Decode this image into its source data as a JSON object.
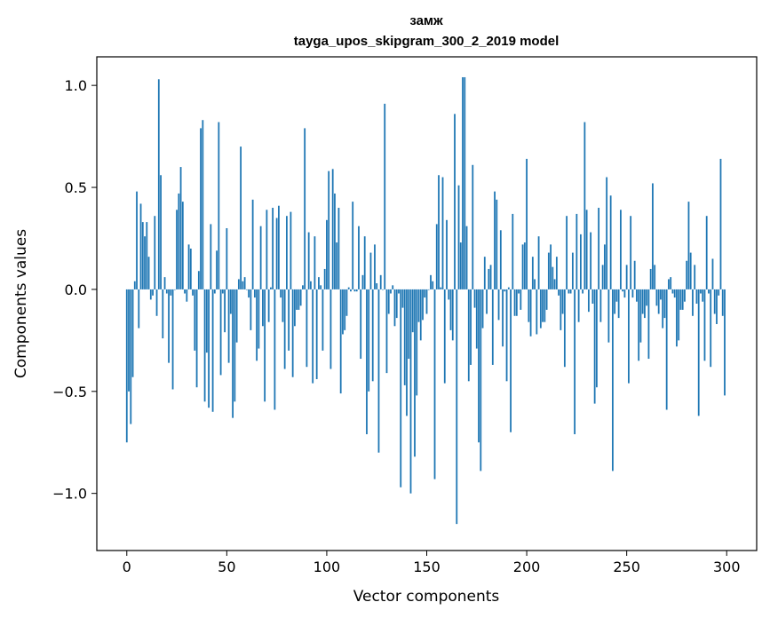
{
  "chart_data": {
    "type": "bar",
    "title": "замж",
    "subtitle": "tayga_upos_skipgram_300_2_2019 model",
    "xlabel": "Vector components",
    "ylabel": "Components values",
    "xlim": [
      -15,
      315
    ],
    "ylim": [
      -1.28,
      1.14
    ],
    "xticks": [
      0,
      50,
      100,
      150,
      200,
      250,
      300
    ],
    "yticks": [
      -1.0,
      -0.5,
      0.0,
      0.5,
      1.0
    ],
    "ytick_labels": [
      "−1.0",
      "−0.5",
      "0.0",
      "0.5",
      "1.0"
    ],
    "bar_color": "#1f77b4",
    "values": [
      -0.75,
      -0.5,
      -0.66,
      -0.43,
      0.04,
      0.48,
      -0.19,
      0.42,
      0.33,
      0.26,
      0.33,
      0.16,
      -0.05,
      -0.03,
      0.36,
      -0.13,
      1.03,
      0.56,
      -0.24,
      0.06,
      -0.02,
      -0.36,
      -0.03,
      -0.49,
      0.0,
      0.39,
      0.47,
      0.6,
      0.43,
      -0.02,
      -0.06,
      0.22,
      0.2,
      -0.03,
      -0.3,
      -0.48,
      0.09,
      0.79,
      0.83,
      -0.55,
      -0.31,
      -0.58,
      0.32,
      -0.6,
      -0.02,
      0.19,
      0.82,
      -0.42,
      -0.02,
      -0.21,
      0.3,
      -0.36,
      -0.12,
      -0.63,
      -0.55,
      -0.26,
      0.05,
      0.7,
      0.04,
      0.06,
      0.0,
      -0.04,
      -0.2,
      0.44,
      -0.04,
      -0.35,
      -0.29,
      0.31,
      -0.18,
      -0.55,
      0.39,
      -0.16,
      0.01,
      0.4,
      -0.59,
      0.35,
      0.41,
      -0.04,
      -0.16,
      -0.39,
      0.36,
      -0.3,
      0.38,
      -0.43,
      -0.18,
      -0.1,
      -0.1,
      -0.08,
      0.02,
      0.79,
      -0.38,
      0.28,
      0.04,
      -0.46,
      0.26,
      -0.44,
      0.06,
      0.02,
      -0.3,
      0.1,
      0.34,
      0.58,
      -0.39,
      0.59,
      0.47,
      0.23,
      0.4,
      -0.51,
      -0.22,
      -0.2,
      -0.13,
      0.01,
      -0.01,
      0.43,
      -0.01,
      -0.01,
      0.31,
      -0.34,
      0.07,
      0.26,
      -0.71,
      -0.5,
      0.18,
      -0.45,
      0.22,
      0.03,
      -0.8,
      0.07,
      0.0,
      0.91,
      -0.41,
      -0.12,
      -0.02,
      0.02,
      -0.18,
      -0.14,
      -0.02,
      -0.97,
      -0.09,
      -0.47,
      -0.62,
      -0.34,
      -1.0,
      -0.21,
      -0.82,
      -0.52,
      -0.16,
      -0.25,
      -0.15,
      -0.04,
      -0.12,
      0.0,
      0.07,
      0.04,
      -0.93,
      0.32,
      0.56,
      0.01,
      0.55,
      -0.46,
      0.34,
      -0.05,
      -0.2,
      -0.25,
      0.86,
      -1.15,
      0.51,
      0.23,
      1.04,
      1.04,
      0.31,
      -0.45,
      -0.37,
      0.61,
      -0.09,
      -0.29,
      -0.75,
      -0.89,
      -0.19,
      0.16,
      -0.12,
      0.1,
      0.12,
      -0.37,
      0.48,
      0.44,
      -0.15,
      0.29,
      -0.28,
      -0.01,
      -0.45,
      0.01,
      -0.7,
      0.37,
      -0.13,
      -0.13,
      -0.02,
      -0.1,
      0.22,
      0.23,
      0.64,
      -0.16,
      -0.23,
      0.16,
      0.05,
      -0.22,
      0.26,
      -0.19,
      -0.16,
      -0.16,
      -0.1,
      0.18,
      0.22,
      0.11,
      0.05,
      0.16,
      -0.03,
      -0.2,
      -0.12,
      -0.38,
      0.36,
      -0.02,
      -0.02,
      0.18,
      -0.71,
      0.37,
      -0.16,
      0.27,
      -0.02,
      0.82,
      0.39,
      -0.11,
      0.28,
      -0.07,
      -0.56,
      -0.48,
      0.4,
      -0.16,
      0.12,
      0.22,
      0.55,
      -0.26,
      0.46,
      -0.89,
      -0.12,
      -0.06,
      -0.14,
      0.39,
      -0.01,
      -0.04,
      0.12,
      -0.46,
      0.36,
      -0.04,
      0.14,
      -0.06,
      -0.35,
      -0.26,
      -0.12,
      -0.14,
      -0.08,
      -0.34,
      0.1,
      0.52,
      0.12,
      -0.08,
      -0.12,
      -0.05,
      -0.19,
      -0.14,
      -0.59,
      0.05,
      0.06,
      -0.02,
      -0.04,
      -0.28,
      -0.25,
      -0.1,
      -0.1,
      -0.06,
      0.14,
      0.43,
      0.18,
      -0.13,
      0.12,
      -0.07,
      -0.62,
      -0.02,
      -0.06,
      -0.35,
      0.36,
      -0.02,
      -0.38,
      0.15,
      -0.12,
      -0.17,
      -0.03,
      0.64,
      -0.13,
      -0.52
    ]
  }
}
